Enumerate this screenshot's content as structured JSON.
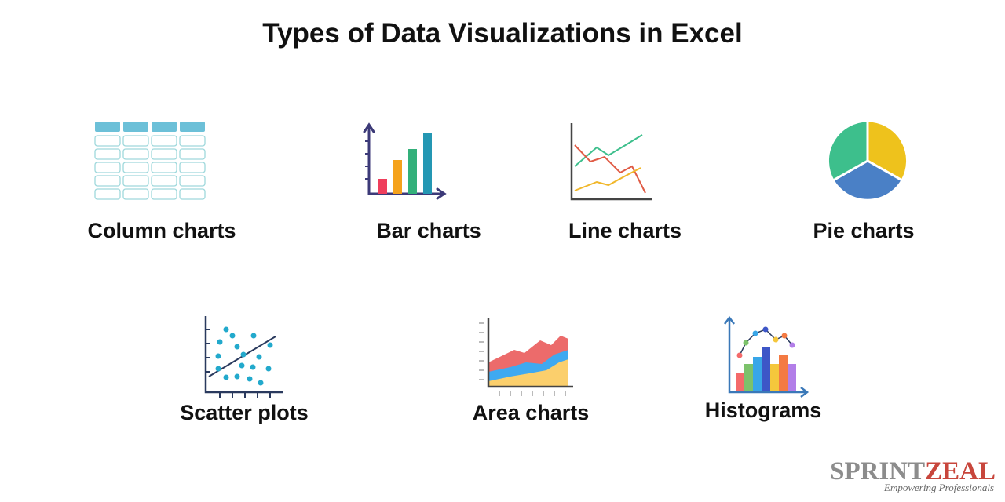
{
  "header": {
    "title": "Types of Data Visualizations in Excel"
  },
  "items": [
    {
      "label": "Column charts"
    },
    {
      "label": "Bar charts"
    },
    {
      "label": "Line charts"
    },
    {
      "label": "Pie charts"
    },
    {
      "label": "Scatter plots"
    },
    {
      "label": "Area charts"
    },
    {
      "label": "Histograms"
    }
  ],
  "logo": {
    "name_main": "SPRINT",
    "name_accent": "ZEAL",
    "tagline": "Empowering Professionals"
  }
}
